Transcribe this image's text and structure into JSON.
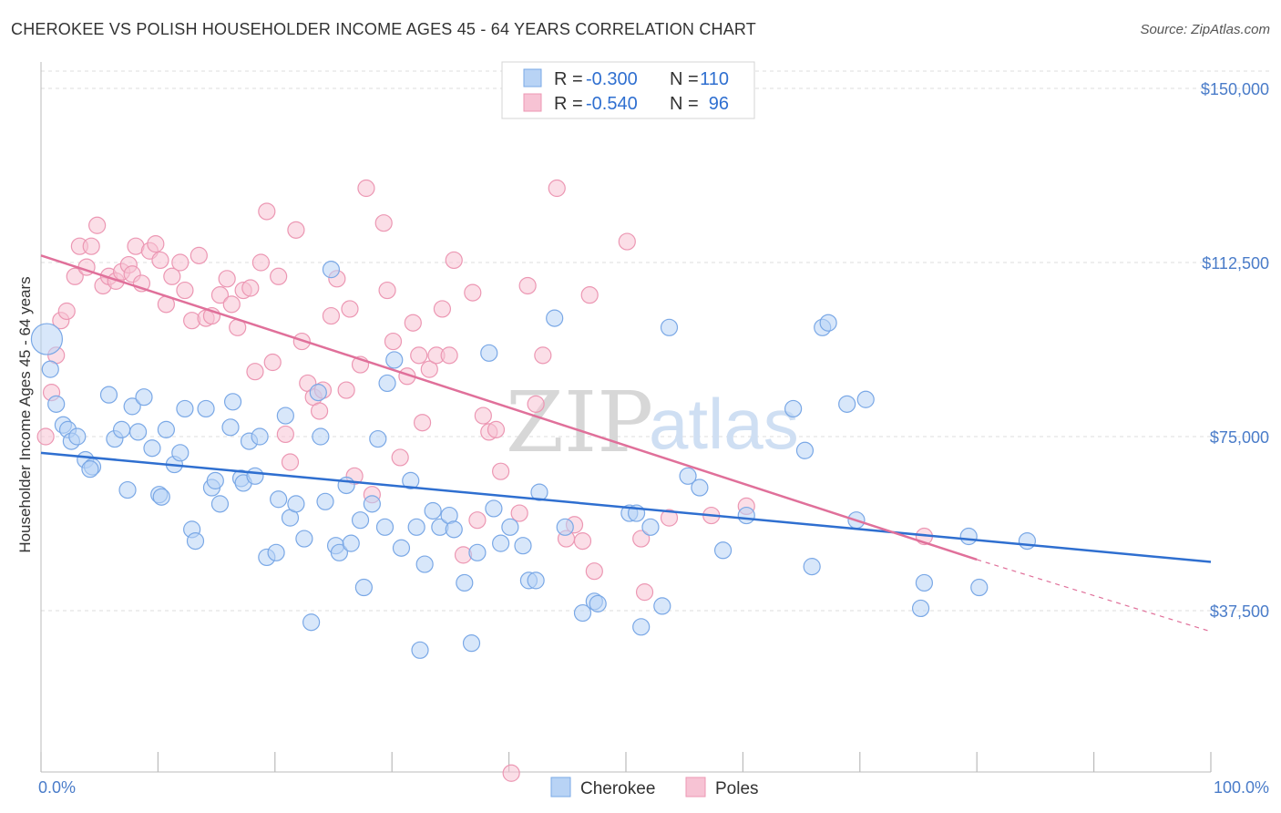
{
  "title": "CHEROKEE VS POLISH HOUSEHOLDER INCOME AGES 45 - 64 YEARS CORRELATION CHART",
  "source": "Source: ZipAtlas.com",
  "watermark": {
    "zip": "ZIP",
    "atlas": "atlas"
  },
  "legend": {
    "r_label": "R =",
    "n_label": "N =",
    "cherokee": {
      "r": "-0.300",
      "n": "110"
    },
    "poles": {
      "r": "-0.540",
      "n": "96"
    }
  },
  "bottom_legend": {
    "cherokee": "Cherokee",
    "poles": "Poles"
  },
  "colors": {
    "cherokee_fill": "#b8d3f5",
    "cherokee_stroke": "#7aa8e6",
    "cherokee_line": "#2f6fd0",
    "poles_fill": "#f7c3d4",
    "poles_stroke": "#ec97b3",
    "poles_line": "#e0709a"
  },
  "chart_data": {
    "type": "scatter",
    "xlabel": "",
    "ylabel": "Householder Income Ages 45 - 64 years",
    "x_tick_labels": [
      "0.0%",
      "100.0%"
    ],
    "y_tick_labels": [
      "$150,000",
      "$112,500",
      "$75,000",
      "$37,500"
    ],
    "y_ticks": [
      150000,
      112500,
      75000,
      37500
    ],
    "xlim": [
      0,
      100
    ],
    "ylim": [
      0,
      155000
    ],
    "grid": true,
    "legend_position": "top-center",
    "series": [
      {
        "name": "Cherokee",
        "trend": {
          "x": [
            0,
            100
          ],
          "y": [
            71500,
            48000
          ]
        },
        "points": [
          [
            0.5,
            96000
          ],
          [
            0.8,
            89500
          ],
          [
            1.3,
            82000
          ],
          [
            1.9,
            77500
          ],
          [
            2.3,
            76500
          ],
          [
            2.6,
            74000
          ],
          [
            3.1,
            75000
          ],
          [
            3.8,
            70000
          ],
          [
            4.4,
            68500
          ],
          [
            4.2,
            68000
          ],
          [
            5.8,
            84000
          ],
          [
            6.3,
            74500
          ],
          [
            6.9,
            76500
          ],
          [
            7.4,
            63500
          ],
          [
            7.8,
            81500
          ],
          [
            8.3,
            76000
          ],
          [
            8.8,
            83500
          ],
          [
            9.5,
            72500
          ],
          [
            10.1,
            62500
          ],
          [
            10.3,
            62000
          ],
          [
            10.7,
            76500
          ],
          [
            11.4,
            69000
          ],
          [
            11.9,
            71500
          ],
          [
            12.3,
            81000
          ],
          [
            12.9,
            55000
          ],
          [
            13.2,
            52500
          ],
          [
            14.1,
            81000
          ],
          [
            14.6,
            64000
          ],
          [
            14.9,
            65500
          ],
          [
            15.3,
            60500
          ],
          [
            16.2,
            77000
          ],
          [
            16.4,
            82500
          ],
          [
            17.1,
            66000
          ],
          [
            17.3,
            65000
          ],
          [
            17.8,
            74000
          ],
          [
            18.3,
            66500
          ],
          [
            18.7,
            75000
          ],
          [
            19.3,
            49000
          ],
          [
            20.1,
            50000
          ],
          [
            20.3,
            61500
          ],
          [
            20.9,
            79500
          ],
          [
            21.3,
            57500
          ],
          [
            21.8,
            60500
          ],
          [
            22.5,
            53000
          ],
          [
            23.1,
            35000
          ],
          [
            23.7,
            84500
          ],
          [
            23.9,
            75000
          ],
          [
            24.3,
            61000
          ],
          [
            24.8,
            111000
          ],
          [
            25.2,
            51500
          ],
          [
            25.5,
            50000
          ],
          [
            26.1,
            64500
          ],
          [
            26.5,
            52000
          ],
          [
            27.3,
            57000
          ],
          [
            27.6,
            42500
          ],
          [
            28.3,
            60500
          ],
          [
            28.8,
            74500
          ],
          [
            29.4,
            55500
          ],
          [
            29.6,
            86500
          ],
          [
            30.2,
            91500
          ],
          [
            30.8,
            51000
          ],
          [
            31.6,
            65500
          ],
          [
            32.1,
            55500
          ],
          [
            32.4,
            29000
          ],
          [
            32.8,
            47500
          ],
          [
            33.5,
            59000
          ],
          [
            34.1,
            55500
          ],
          [
            34.9,
            58000
          ],
          [
            35.3,
            55000
          ],
          [
            36.2,
            43500
          ],
          [
            36.8,
            30500
          ],
          [
            37.3,
            50000
          ],
          [
            38.3,
            93000
          ],
          [
            38.7,
            59500
          ],
          [
            39.3,
            52000
          ],
          [
            40.1,
            55500
          ],
          [
            41.2,
            51500
          ],
          [
            41.7,
            44000
          ],
          [
            42.3,
            44000
          ],
          [
            42.6,
            63000
          ],
          [
            43.9,
            100500
          ],
          [
            44.8,
            55500
          ],
          [
            46.3,
            37000
          ],
          [
            47.3,
            39500
          ],
          [
            47.6,
            39000
          ],
          [
            50.3,
            58500
          ],
          [
            50.9,
            58500
          ],
          [
            51.3,
            34000
          ],
          [
            52.1,
            55500
          ],
          [
            53.1,
            38500
          ],
          [
            53.7,
            98500
          ],
          [
            55.3,
            66500
          ],
          [
            56.3,
            64000
          ],
          [
            58.3,
            50500
          ],
          [
            60.3,
            58000
          ],
          [
            64.3,
            81000
          ],
          [
            65.3,
            72000
          ],
          [
            65.9,
            47000
          ],
          [
            66.8,
            98500
          ],
          [
            67.3,
            99500
          ],
          [
            68.9,
            82000
          ],
          [
            69.7,
            57000
          ],
          [
            70.5,
            83000
          ],
          [
            75.2,
            38000
          ],
          [
            75.5,
            43500
          ],
          [
            79.3,
            53500
          ],
          [
            80.2,
            42500
          ],
          [
            84.3,
            52500
          ]
        ]
      },
      {
        "name": "Poles",
        "trend": {
          "x": [
            0,
            80
          ],
          "y": [
            114000,
            48500
          ]
        },
        "trend_dashed": {
          "x": [
            80,
            100
          ],
          "y": [
            48500,
            33000
          ]
        },
        "points": [
          [
            0.4,
            75000
          ],
          [
            0.9,
            84500
          ],
          [
            1.3,
            92500
          ],
          [
            1.7,
            100000
          ],
          [
            2.2,
            102000
          ],
          [
            2.9,
            109500
          ],
          [
            3.3,
            116000
          ],
          [
            3.9,
            111500
          ],
          [
            4.3,
            116000
          ],
          [
            4.8,
            120500
          ],
          [
            5.3,
            107500
          ],
          [
            5.8,
            109500
          ],
          [
            6.4,
            108500
          ],
          [
            6.9,
            110500
          ],
          [
            7.5,
            112000
          ],
          [
            7.8,
            110000
          ],
          [
            8.1,
            116000
          ],
          [
            8.6,
            108000
          ],
          [
            9.3,
            115000
          ],
          [
            9.8,
            116500
          ],
          [
            10.2,
            113000
          ],
          [
            10.7,
            103500
          ],
          [
            11.2,
            109500
          ],
          [
            11.9,
            112500
          ],
          [
            12.3,
            106500
          ],
          [
            12.9,
            100000
          ],
          [
            13.5,
            114000
          ],
          [
            14.1,
            100500
          ],
          [
            14.6,
            101000
          ],
          [
            15.3,
            105500
          ],
          [
            15.9,
            109000
          ],
          [
            16.3,
            103500
          ],
          [
            16.8,
            98500
          ],
          [
            17.3,
            106500
          ],
          [
            17.9,
            107000
          ],
          [
            18.3,
            89000
          ],
          [
            18.8,
            112500
          ],
          [
            19.3,
            123500
          ],
          [
            19.8,
            91000
          ],
          [
            20.3,
            109500
          ],
          [
            20.9,
            75500
          ],
          [
            21.3,
            69500
          ],
          [
            21.8,
            119500
          ],
          [
            22.3,
            95500
          ],
          [
            22.8,
            86500
          ],
          [
            23.3,
            83500
          ],
          [
            23.8,
            80500
          ],
          [
            24.1,
            85000
          ],
          [
            24.8,
            101000
          ],
          [
            25.3,
            109000
          ],
          [
            26.1,
            85000
          ],
          [
            26.4,
            102500
          ],
          [
            26.8,
            66500
          ],
          [
            27.3,
            90500
          ],
          [
            27.8,
            128500
          ],
          [
            28.3,
            62500
          ],
          [
            29.3,
            121000
          ],
          [
            29.6,
            106500
          ],
          [
            30.1,
            95500
          ],
          [
            30.7,
            70500
          ],
          [
            31.3,
            88000
          ],
          [
            31.8,
            99500
          ],
          [
            32.3,
            92500
          ],
          [
            32.6,
            78000
          ],
          [
            33.2,
            89500
          ],
          [
            33.8,
            92500
          ],
          [
            34.3,
            102500
          ],
          [
            34.9,
            92500
          ],
          [
            35.3,
            113000
          ],
          [
            36.1,
            49500
          ],
          [
            36.9,
            106000
          ],
          [
            37.3,
            57000
          ],
          [
            37.8,
            79500
          ],
          [
            38.3,
            76000
          ],
          [
            38.9,
            76500
          ],
          [
            39.3,
            67500
          ],
          [
            40.2,
            2500
          ],
          [
            40.9,
            58500
          ],
          [
            41.6,
            107500
          ],
          [
            42.3,
            82000
          ],
          [
            42.9,
            92500
          ],
          [
            44.1,
            128500
          ],
          [
            44.9,
            53000
          ],
          [
            45.6,
            56000
          ],
          [
            46.3,
            52500
          ],
          [
            46.9,
            105500
          ],
          [
            47.3,
            46000
          ],
          [
            50.1,
            117000
          ],
          [
            51.3,
            53000
          ],
          [
            51.6,
            41500
          ],
          [
            53.7,
            57500
          ],
          [
            57.3,
            58000
          ],
          [
            60.3,
            60000
          ],
          [
            75.5,
            53500
          ]
        ]
      }
    ]
  }
}
